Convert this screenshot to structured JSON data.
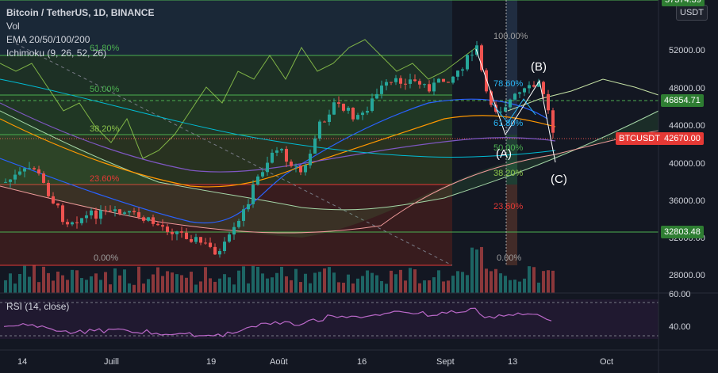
{
  "legend": {
    "symbol": "Bitcoin / TetherUS, 1D, BINANCE",
    "vol": "Vol",
    "ema": "EMA 20/50/100/200",
    "ichimoku": "Ichimoku (9, 26, 52, 26)"
  },
  "currency_button": "USDT",
  "rsi_label": "RSI (14, close)",
  "price_axis": [
    "52000.00",
    "48000.00",
    "44000.00",
    "40000.00",
    "36000.00",
    "32000.00",
    "28000.00"
  ],
  "rsi_axis": [
    "60.00",
    "40.00"
  ],
  "top_axis_partial": [
    "57374.39"
  ],
  "time_axis": [
    "14",
    "Juill",
    "19",
    "Août",
    "16",
    "Sept",
    "13",
    "Oct"
  ],
  "price_tags": {
    "level_high": "46854.71",
    "current_symbol": "BTCUSDT",
    "current_price": "42670.00",
    "level_low": "32803.48"
  },
  "fib_left": [
    "61.80%",
    "50.00%",
    "38.20%",
    "23.60%",
    "0.00%"
  ],
  "fib_right": [
    "100.00%",
    "78.60%",
    "61.80%",
    "50.00%",
    "38.20%",
    "23.60%",
    "0.00%"
  ],
  "wave_labels": [
    "(A)",
    "(B)",
    "(C)"
  ],
  "colors": {
    "background": "#131722",
    "up": "#26a69a",
    "down": "#ef5350",
    "fib_green": "#4caf50",
    "fib_red": "#e53935",
    "rsi": "#9c27b0"
  }
}
